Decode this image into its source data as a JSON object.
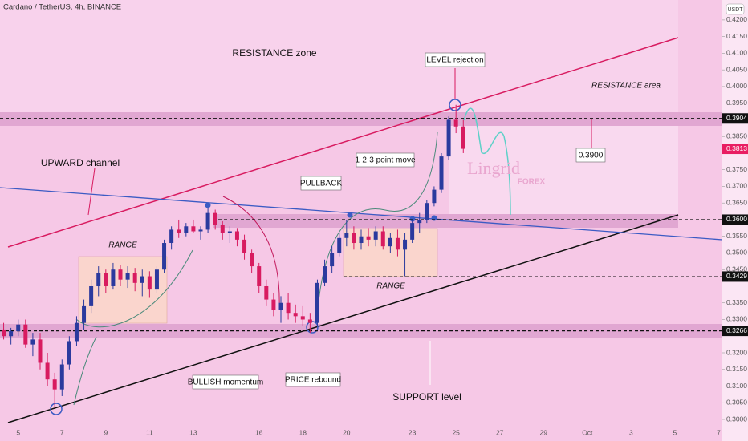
{
  "chart_data": {
    "type": "candlestick",
    "title": "Cardano / TetherUS, 4h, BINANCE",
    "currency": "USDT",
    "up_color": "#2b3a9e",
    "down_color": "#d81b60",
    "categories": [
      null,
      null,
      "5",
      null,
      null,
      null,
      null,
      null,
      "7",
      null,
      null,
      null,
      null,
      null,
      "9",
      null,
      null,
      null,
      null,
      null,
      "11",
      null,
      null,
      null,
      null,
      null,
      "13",
      null,
      null,
      null,
      null,
      null,
      null,
      null,
      null,
      "16",
      null,
      null,
      null,
      null,
      null,
      "18",
      null,
      null,
      null,
      null,
      null,
      "20",
      null,
      null,
      null,
      null,
      null,
      null,
      null,
      null,
      "23",
      null,
      null,
      null,
      null,
      null,
      "25",
      null,
      null,
      null,
      null,
      null,
      "27",
      null,
      null,
      null,
      null,
      null,
      "29",
      null,
      null,
      null,
      null,
      null,
      "Oct",
      null,
      null,
      null,
      null,
      null,
      "3",
      null,
      null,
      null,
      null,
      null,
      "5",
      null,
      null,
      null,
      null,
      null,
      "7"
    ],
    "values": [
      [
        0.327,
        0.329,
        0.324,
        0.325
      ],
      [
        0.325,
        0.3275,
        0.3225,
        0.3265
      ],
      [
        0.3265,
        0.33,
        0.325,
        0.3285
      ],
      [
        0.3285,
        0.33,
        0.3215,
        0.3225
      ],
      [
        0.3225,
        0.326,
        0.319,
        0.324
      ],
      [
        0.324,
        0.326,
        0.315,
        0.317
      ],
      [
        0.317,
        0.32,
        0.31,
        0.312
      ],
      [
        0.312,
        0.314,
        0.3035,
        0.309
      ],
      [
        0.309,
        0.318,
        0.307,
        0.3165
      ],
      [
        0.3165,
        0.325,
        0.315,
        0.3235
      ],
      [
        0.3235,
        0.331,
        0.322,
        0.329
      ],
      [
        0.329,
        0.336,
        0.327,
        0.334
      ],
      [
        0.334,
        0.342,
        0.332,
        0.34
      ],
      [
        0.34,
        0.346,
        0.337,
        0.344
      ],
      [
        0.344,
        0.345,
        0.338,
        0.34
      ],
      [
        0.34,
        0.347,
        0.339,
        0.345
      ],
      [
        0.345,
        0.3465,
        0.34,
        0.342
      ],
      [
        0.342,
        0.346,
        0.3395,
        0.344
      ],
      [
        0.344,
        0.3455,
        0.3385,
        0.341
      ],
      [
        0.341,
        0.345,
        0.337,
        0.343
      ],
      [
        0.343,
        0.3445,
        0.3365,
        0.339
      ],
      [
        0.339,
        0.346,
        0.338,
        0.345
      ],
      [
        0.345,
        0.354,
        0.344,
        0.353
      ],
      [
        0.353,
        0.358,
        0.351,
        0.357
      ],
      [
        0.357,
        0.36,
        0.3545,
        0.356
      ],
      [
        0.356,
        0.359,
        0.355,
        0.358
      ],
      [
        0.358,
        0.36,
        0.356,
        0.3565
      ],
      [
        0.3565,
        0.358,
        0.354,
        0.357
      ],
      [
        0.357,
        0.3635,
        0.356,
        0.362
      ],
      [
        0.362,
        0.363,
        0.357,
        0.3585
      ],
      [
        0.3585,
        0.3595,
        0.354,
        0.356
      ],
      [
        0.356,
        0.358,
        0.353,
        0.3565
      ],
      [
        0.3565,
        0.3575,
        0.352,
        0.354
      ],
      [
        0.354,
        0.3555,
        0.348,
        0.35
      ],
      [
        0.35,
        0.351,
        0.344,
        0.346
      ],
      [
        0.346,
        0.347,
        0.338,
        0.34
      ],
      [
        0.34,
        0.342,
        0.334,
        0.336
      ],
      [
        0.336,
        0.338,
        0.331,
        0.333
      ],
      [
        0.333,
        0.337,
        0.329,
        0.335
      ],
      [
        0.335,
        0.338,
        0.33,
        0.332
      ],
      [
        0.332,
        0.3345,
        0.329,
        0.331
      ],
      [
        0.331,
        0.334,
        0.328,
        0.33
      ],
      [
        0.33,
        0.332,
        0.326,
        0.329
      ],
      [
        0.329,
        0.342,
        0.328,
        0.341
      ],
      [
        0.341,
        0.348,
        0.34,
        0.346
      ],
      [
        0.346,
        0.352,
        0.344,
        0.35
      ],
      [
        0.35,
        0.356,
        0.349,
        0.3545
      ],
      [
        0.3545,
        0.36,
        0.352,
        0.356
      ],
      [
        0.356,
        0.358,
        0.351,
        0.353
      ],
      [
        0.353,
        0.357,
        0.351,
        0.355
      ],
      [
        0.355,
        0.3575,
        0.352,
        0.354
      ],
      [
        0.354,
        0.358,
        0.352,
        0.3565
      ],
      [
        0.3565,
        0.358,
        0.351,
        0.352
      ],
      [
        0.352,
        0.356,
        0.35,
        0.3545
      ],
      [
        0.3545,
        0.357,
        0.349,
        0.351
      ],
      [
        0.351,
        0.356,
        0.343,
        0.354
      ],
      [
        0.354,
        0.36,
        0.353,
        0.359
      ],
      [
        0.359,
        0.362,
        0.356,
        0.36
      ],
      [
        0.36,
        0.366,
        0.359,
        0.365
      ],
      [
        0.365,
        0.37,
        0.364,
        0.369
      ],
      [
        0.369,
        0.38,
        0.368,
        0.379
      ],
      [
        0.379,
        0.391,
        0.378,
        0.39
      ],
      [
        0.39,
        0.3945,
        0.386,
        0.388
      ],
      [
        0.388,
        0.39,
        0.38,
        0.3813
      ],
      null,
      null,
      null,
      null,
      null,
      null,
      null,
      null,
      null,
      null,
      null,
      null,
      null,
      null,
      null,
      null,
      null,
      null,
      null,
      null,
      null,
      null,
      null,
      null,
      null,
      null,
      null,
      null,
      null,
      null,
      null,
      null,
      null,
      null,
      null
    ],
    "ylim": [
      0.2935,
      0.426
    ],
    "yticks": [
      {
        "value": 0.42,
        "label": "0.4200"
      },
      {
        "value": 0.415,
        "label": "0.4150"
      },
      {
        "value": 0.41,
        "label": "0.4100"
      },
      {
        "value": 0.405,
        "label": "0.4050"
      },
      {
        "value": 0.4,
        "label": "0.4000"
      },
      {
        "value": 0.395,
        "label": "0.3950"
      },
      {
        "value": 0.385,
        "label": "0.3850"
      },
      {
        "value": 0.375,
        "label": "0.3750"
      },
      {
        "value": 0.37,
        "label": "0.3700"
      },
      {
        "value": 0.365,
        "label": "0.3650"
      },
      {
        "value": 0.355,
        "label": "0.3550"
      },
      {
        "value": 0.35,
        "label": "0.3500"
      },
      {
        "value": 0.345,
        "label": "0.3450"
      },
      {
        "value": 0.335,
        "label": "0.3350"
      },
      {
        "value": 0.33,
        "label": "0.3300"
      },
      {
        "value": 0.32,
        "label": "0.3200"
      },
      {
        "value": 0.315,
        "label": "0.3150"
      },
      {
        "value": 0.31,
        "label": "0.3100"
      },
      {
        "value": 0.305,
        "label": "0.3050"
      },
      {
        "value": 0.3,
        "label": "0.3000"
      }
    ],
    "levels": [
      {
        "value": 0.3904,
        "label": "0.3904"
      },
      {
        "value": 0.36,
        "label": "0.3600"
      },
      {
        "value": 0.3429,
        "label": "0.3429"
      },
      {
        "value": 0.3266,
        "label": "0.3266"
      }
    ],
    "last_price": {
      "value": 0.3813,
      "label": "0.3813"
    },
    "annotations": {
      "resistance_zone": "RESISTANCE zone",
      "level_rejection": "LEVEL rejection",
      "resistance_area": "RESISTANCE area",
      "upward_channel": "UPWARD channel",
      "pullback": "PULLBACK",
      "point_move": "1-2-3 point move",
      "range_left": "RANGE",
      "range_right": "RANGE",
      "bullish_momentum": "BULLISH momentum",
      "price_rebound": "PRICE rebound",
      "support_level": "SUPPORT level",
      "target": "0.3900",
      "brand": "Lingrid",
      "brand_sub": "FOREX"
    }
  }
}
